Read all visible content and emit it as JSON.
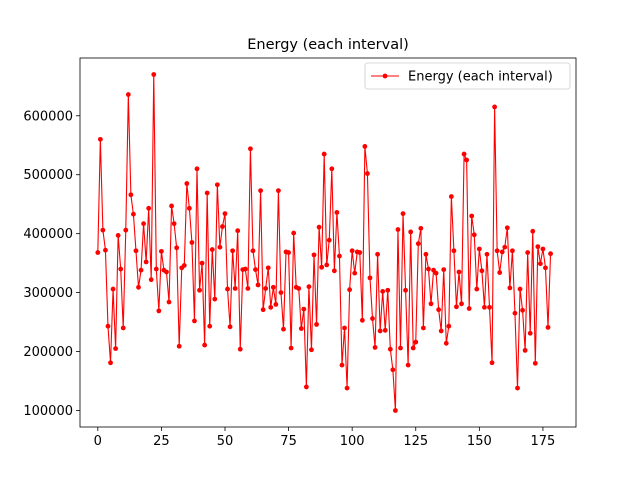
{
  "chart_data": {
    "type": "line",
    "title": "Energy (each interval)",
    "xlabel": "",
    "ylabel": "",
    "xlim": [
      -7,
      188
    ],
    "ylim": [
      72000,
      698000
    ],
    "xticks": [
      0,
      25,
      50,
      75,
      100,
      125,
      150,
      175
    ],
    "yticks": [
      100000,
      200000,
      300000,
      400000,
      500000,
      600000
    ],
    "ytick_labels": [
      "100000",
      "200000",
      "300000",
      "400000",
      "500000",
      "600000"
    ],
    "grid": false,
    "legend": {
      "position": "top-right",
      "entries": [
        "Energy (each interval)"
      ]
    },
    "series": [
      {
        "name": "Energy (each interval)",
        "color": "#ff0000",
        "marker": "circle",
        "values": [
          368000,
          560000,
          406000,
          372000,
          243000,
          181000,
          306000,
          205000,
          397000,
          340000,
          240000,
          406000,
          636000,
          466000,
          433000,
          371000,
          309000,
          338000,
          417000,
          352000,
          443000,
          322000,
          670000,
          340000,
          269000,
          370000,
          338000,
          335000,
          284000,
          447000,
          417000,
          376000,
          209000,
          342000,
          346000,
          485000,
          443000,
          385000,
          252000,
          510000,
          304000,
          350000,
          211000,
          469000,
          243000,
          373000,
          289000,
          483000,
          377000,
          412000,
          434000,
          306000,
          242000,
          371000,
          307000,
          405000,
          204000,
          339000,
          340000,
          307000,
          544000,
          371000,
          339000,
          313000,
          473000,
          271000,
          307000,
          342000,
          275000,
          309000,
          280000,
          473000,
          300000,
          238000,
          369000,
          368000,
          206000,
          401000,
          309000,
          307000,
          239000,
          272000,
          140000,
          310000,
          203000,
          364000,
          246000,
          411000,
          343000,
          535000,
          347000,
          389000,
          510000,
          337000,
          436000,
          362000,
          177000,
          240000,
          138000,
          305000,
          371000,
          333000,
          369000,
          368000,
          253000,
          548000,
          502000,
          325000,
          256000,
          207000,
          365000,
          235000,
          302000,
          236000,
          304000,
          204000,
          169000,
          100000,
          407000,
          206000,
          434000,
          304000,
          177000,
          403000,
          206000,
          216000,
          383000,
          409000,
          240000,
          365000,
          340000,
          281000,
          338000,
          333000,
          271000,
          235000,
          339000,
          214000,
          243000,
          463000,
          371000,
          276000,
          335000,
          281000,
          535000,
          525000,
          273000,
          430000,
          398000,
          306000,
          374000,
          337000,
          275000,
          365000,
          275000,
          181000,
          615000,
          371000,
          334000,
          369000,
          377000,
          410000,
          308000,
          371000,
          265000,
          138000,
          306000,
          270000,
          202000,
          368000,
          231000,
          404000,
          180000,
          378000,
          349000,
          374000,
          342000,
          241000,
          366000
        ]
      }
    ]
  }
}
